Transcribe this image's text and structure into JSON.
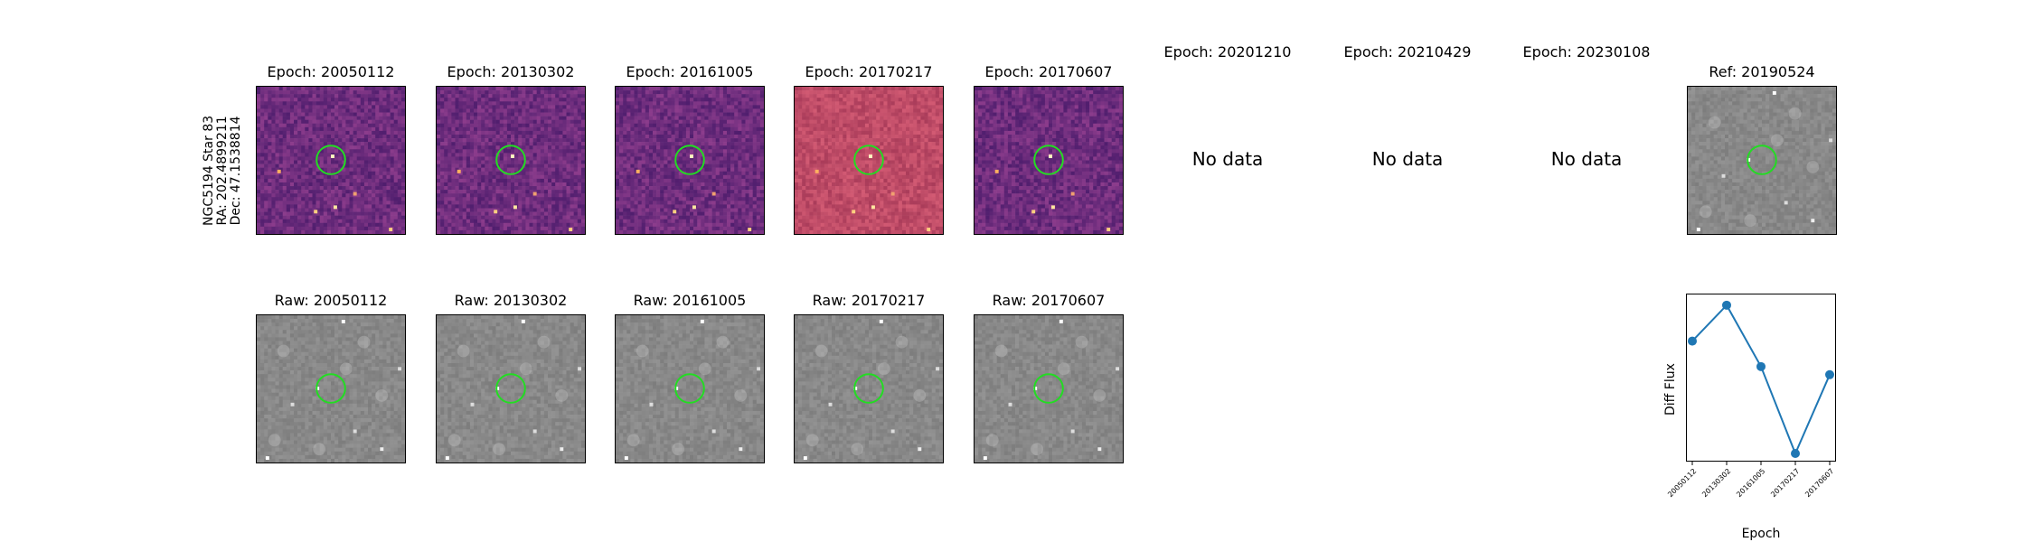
{
  "star_label": {
    "name": "NGC5194 Star 83",
    "ra": "RA: 202.4899211",
    "dec": "Dec: 47.1538814"
  },
  "diff_panels": [
    {
      "title": "Epoch: 20050112",
      "style": "diff"
    },
    {
      "title": "Epoch: 20130302",
      "style": "diff"
    },
    {
      "title": "Epoch: 20161005",
      "style": "diff"
    },
    {
      "title": "Epoch: 20170217",
      "style": "diff-bright"
    },
    {
      "title": "Epoch: 20170607",
      "style": "diff"
    }
  ],
  "nodata_panels": [
    {
      "title": "Epoch: 20201210",
      "text": "No data"
    },
    {
      "title": "Epoch: 20210429",
      "text": "No data"
    },
    {
      "title": "Epoch: 20230108",
      "text": "No data"
    }
  ],
  "ref_panel": {
    "title": "Ref: 20190524"
  },
  "raw_panels": [
    {
      "title": "Raw: 20050112"
    },
    {
      "title": "Raw: 20130302"
    },
    {
      "title": "Raw: 20161005"
    },
    {
      "title": "Raw: 20170217"
    },
    {
      "title": "Raw: 20170607"
    }
  ],
  "colors": {
    "circle": "#22dd22",
    "series": "#1f77b4",
    "diff_bg": "#5a2a78",
    "diff_bright_bg": "#b84a6a",
    "raw_bg": "#8a8a8a"
  },
  "chart_data": {
    "type": "line",
    "x": [
      "20050112",
      "20130302",
      "20161005",
      "20170217",
      "20170607"
    ],
    "values": [
      0.69,
      1.0,
      0.47,
      -0.28,
      0.4
    ],
    "xlabel": "Epoch",
    "ylabel": "Diff Flux",
    "ylim": [
      -0.35,
      1.1
    ]
  }
}
